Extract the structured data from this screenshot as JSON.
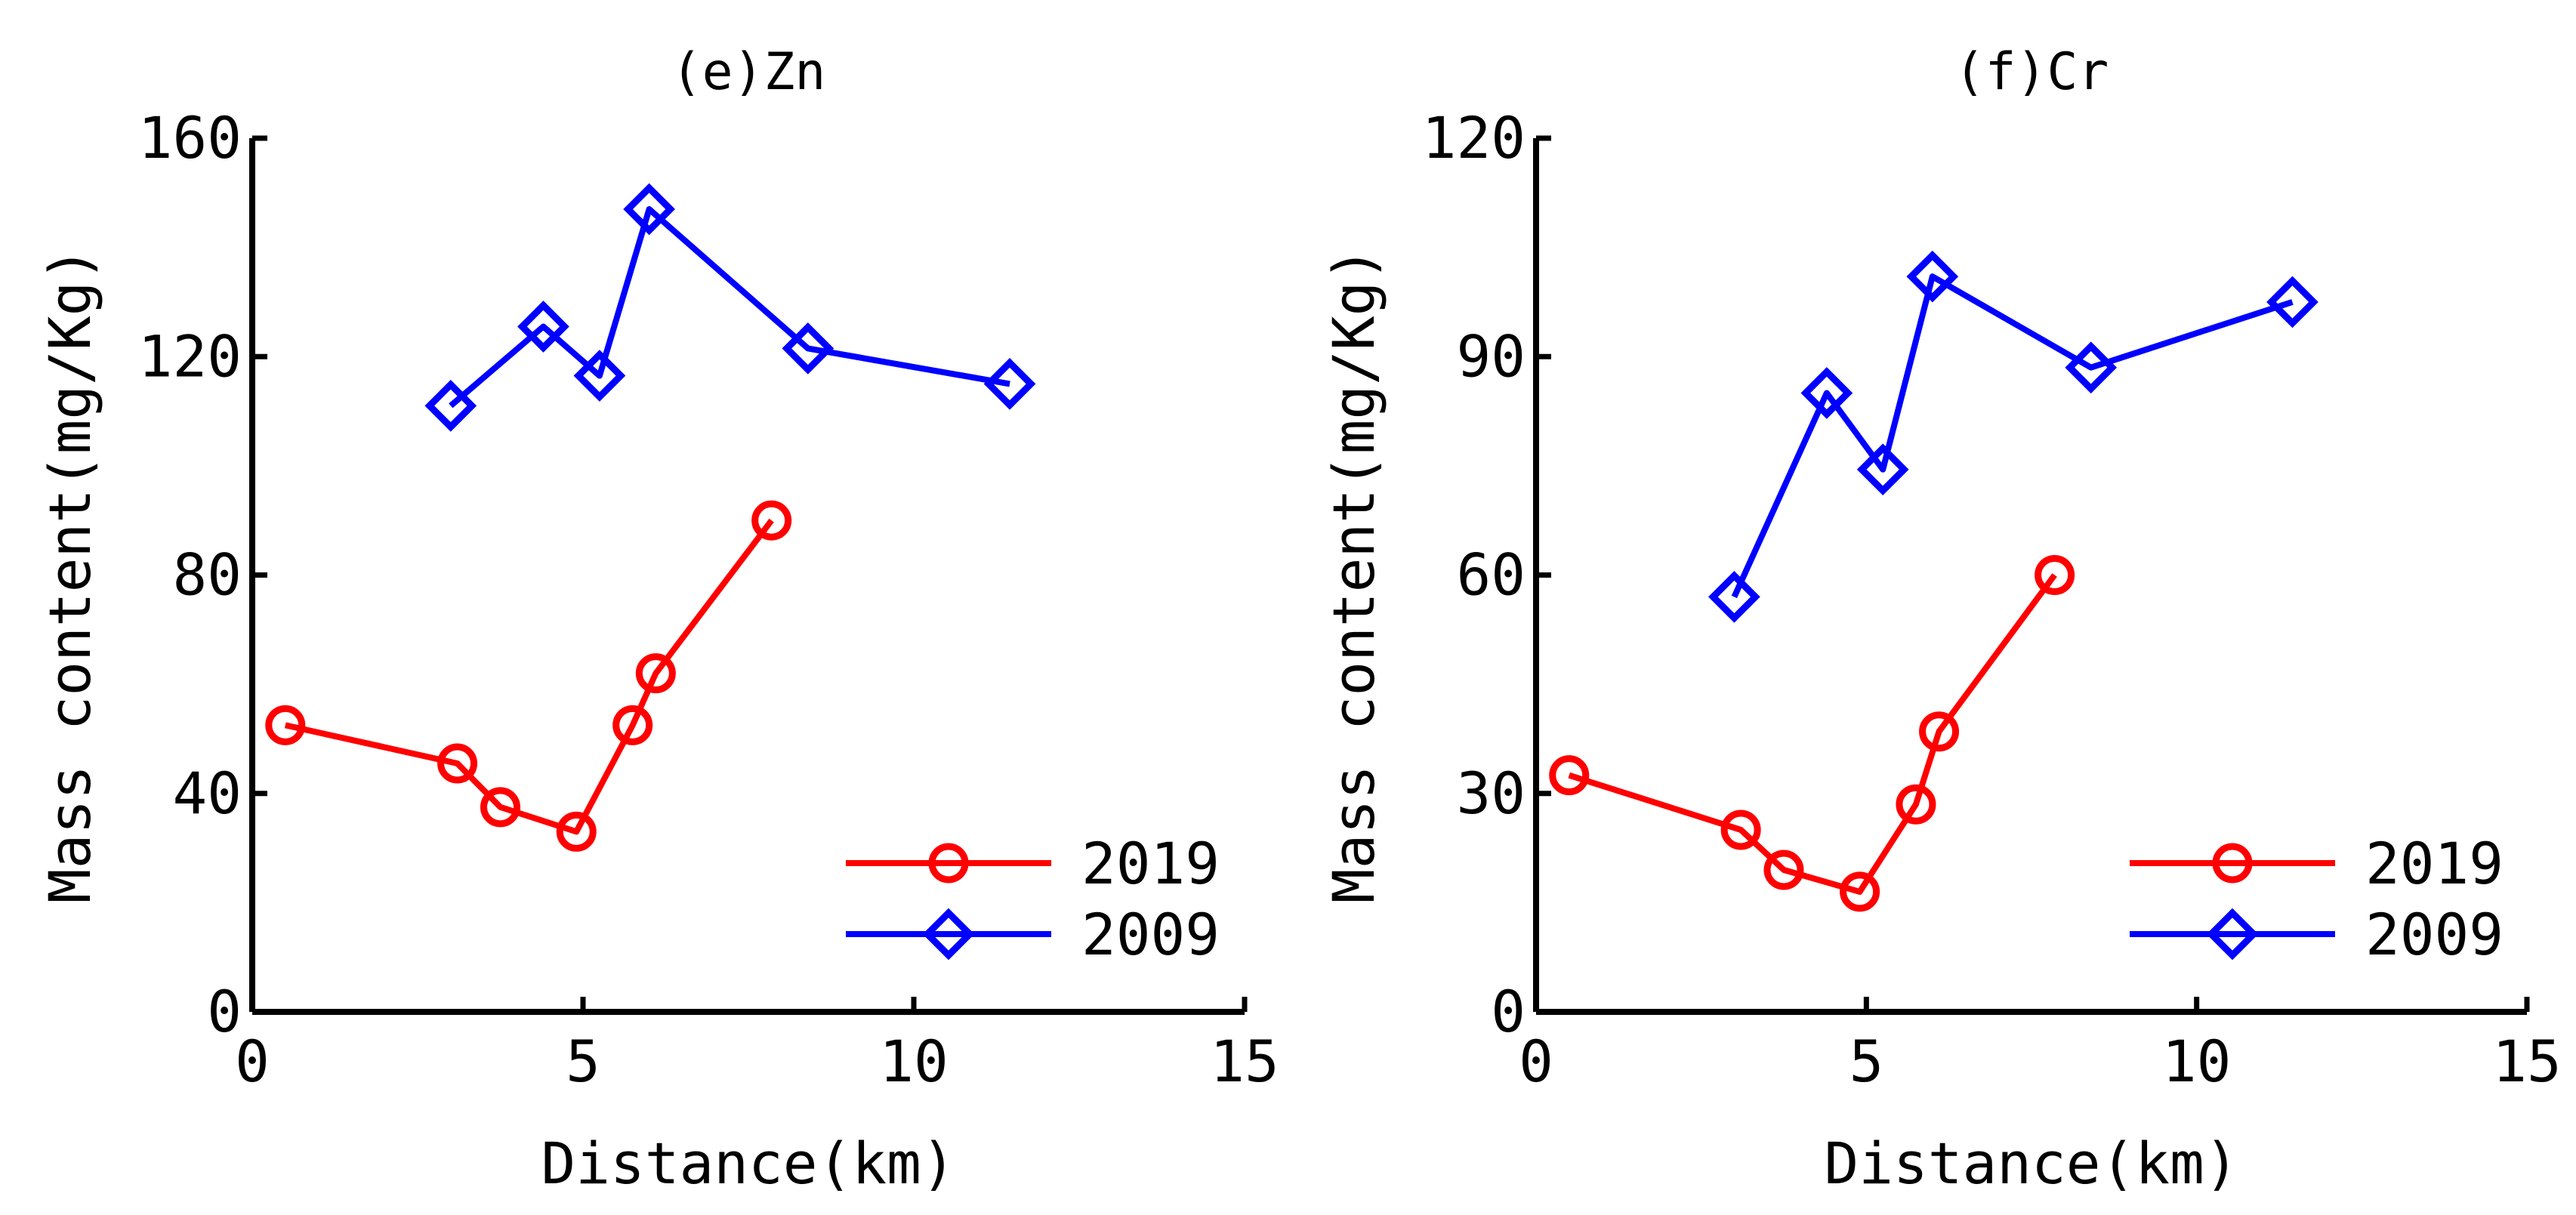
{
  "chart_data": [
    {
      "type": "line",
      "title": "(e)Zn",
      "xlabel": "Distance(km)",
      "ylabel": "Mass content(mg/Kg)",
      "xlim": [
        0,
        15
      ],
      "ylim": [
        0,
        160
      ],
      "xticks": [
        "0",
        "5",
        "10",
        "15"
      ],
      "yticks": [
        "0",
        "40",
        "80",
        "120",
        "160"
      ],
      "grid": false,
      "legend_position": "bottom-right",
      "series": [
        {
          "name": "2019",
          "color": "#ff0000",
          "marker": "circle",
          "x": [
            0.5,
            3.1,
            3.75,
            4.9,
            5.75,
            6.1,
            7.85
          ],
          "y": [
            52.5,
            45.5,
            37.5,
            33,
            52.5,
            62,
            90
          ]
        },
        {
          "name": "2009",
          "color": "#0000ff",
          "marker": "diamond",
          "x": [
            3.0,
            4.4,
            5.25,
            6.0,
            8.4,
            11.45
          ],
          "y": [
            111,
            125.5,
            116.5,
            147,
            121.5,
            115
          ]
        }
      ]
    },
    {
      "type": "line",
      "title": "(f)Cr",
      "xlabel": "Distance(km)",
      "ylabel": "Mass content(mg/Kg)",
      "xlim": [
        0,
        15
      ],
      "ylim": [
        0,
        120
      ],
      "xticks": [
        "0",
        "5",
        "10",
        "15"
      ],
      "yticks": [
        "0",
        "30",
        "60",
        "90",
        "120"
      ],
      "grid": false,
      "legend_position": "bottom-right",
      "series": [
        {
          "name": "2019",
          "color": "#ff0000",
          "marker": "circle",
          "x": [
            0.5,
            3.1,
            3.75,
            4.9,
            5.75,
            6.1,
            7.85
          ],
          "y": [
            32.5,
            25,
            19.5,
            16.5,
            28.5,
            38.5,
            60
          ]
        },
        {
          "name": "2009",
          "color": "#0000ff",
          "marker": "diamond",
          "x": [
            3.0,
            4.4,
            5.25,
            6.0,
            8.4,
            11.45
          ],
          "y": [
            57,
            85,
            74.5,
            101,
            88.5,
            97.5
          ]
        }
      ]
    }
  ]
}
